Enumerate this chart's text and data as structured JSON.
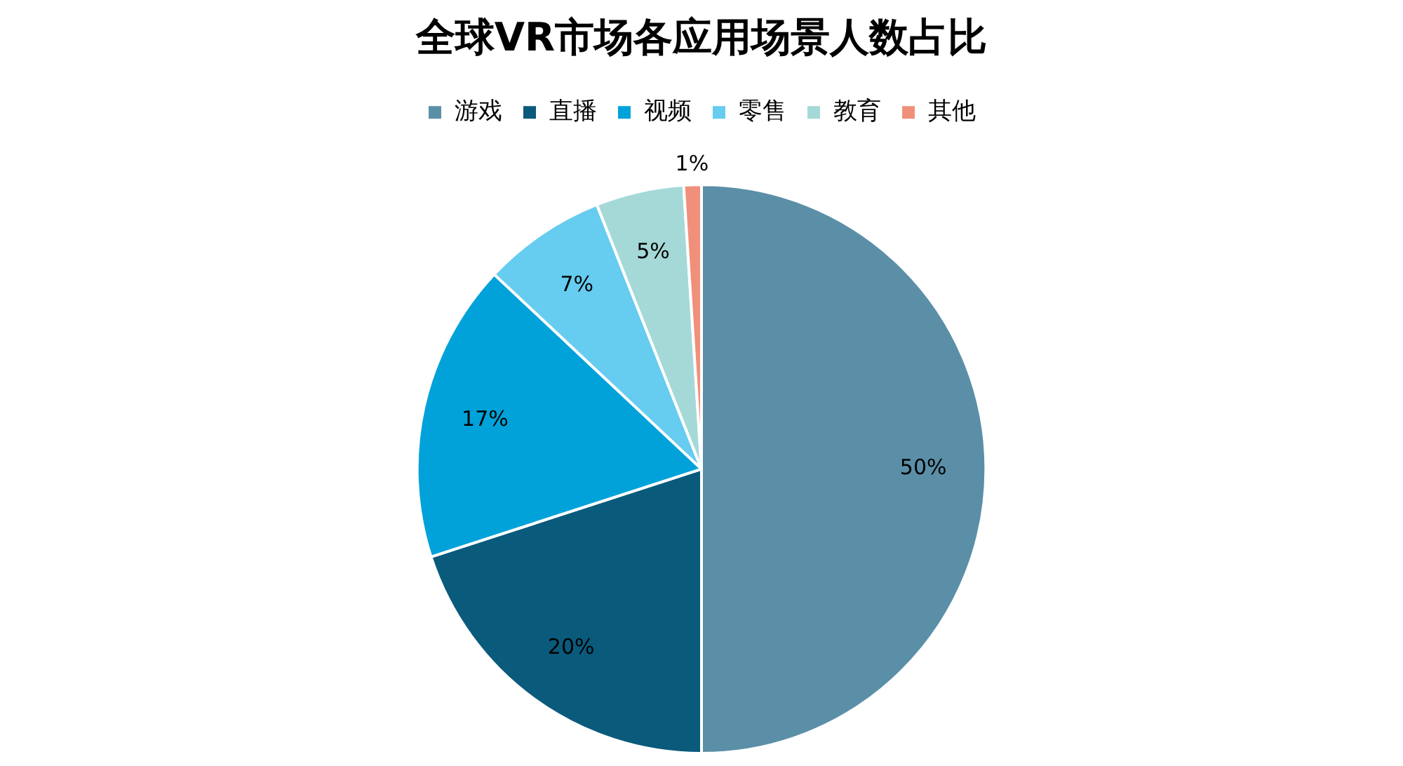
{
  "chart_data": {
    "type": "pie",
    "title": "全球VR市场各应用场景人数占比",
    "categories": [
      "游戏",
      "直播",
      "视频",
      "零售",
      "教育",
      "其他"
    ],
    "values": [
      50,
      20,
      17,
      7,
      5,
      1
    ],
    "value_labels": [
      "50%",
      "20%",
      "17%",
      "7%",
      "5%",
      "1%"
    ],
    "colors": [
      "#5b8fa8",
      "#0a5a7c",
      "#00a2d9",
      "#66ccf0",
      "#a5d9d7",
      "#f0907a"
    ],
    "legend": "top"
  }
}
